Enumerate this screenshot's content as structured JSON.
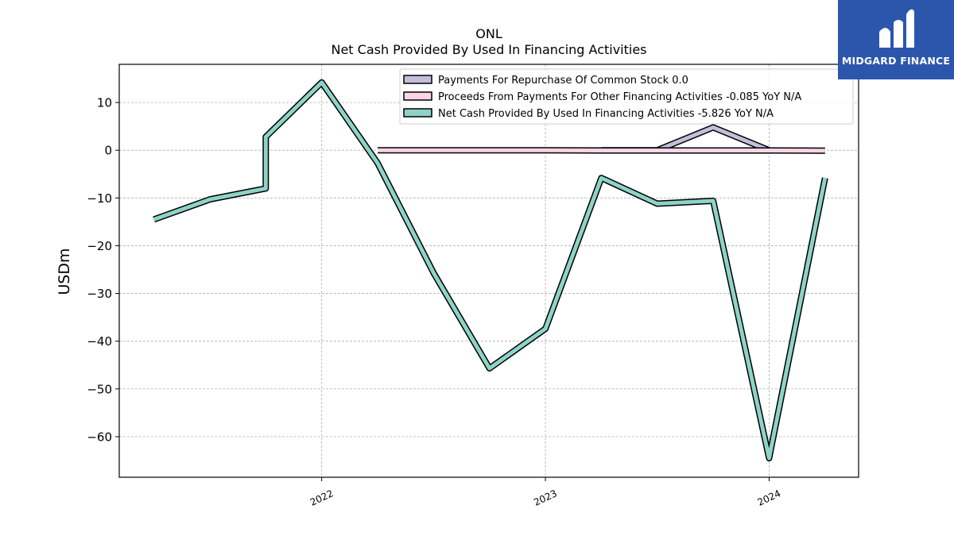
{
  "logo": {
    "text": "MIDGARD FINANCE",
    "background": "#2b56ac"
  },
  "chart_data": {
    "type": "line",
    "title": "ONL",
    "subtitle": "Net Cash Provided By Used In Financing Activities",
    "xlabel": "",
    "ylabel": "USDm",
    "ylim": [
      -68.5,
      18.0
    ],
    "yticks": [
      10,
      0,
      -10,
      -20,
      -30,
      -40,
      -50,
      -60
    ],
    "ytick_labels": [
      "10",
      "0",
      "−10",
      "−20",
      "−30",
      "−40",
      "−50",
      "−60"
    ],
    "xlim": [
      2021.095,
      2024.4
    ],
    "xticks": [
      2022,
      2023,
      2024
    ],
    "xtick_labels": [
      "2022",
      "2023",
      "2024"
    ],
    "grid": true,
    "legend_position": "top-right",
    "series": [
      {
        "name": "Payments For Repurchase Of Common Stock",
        "legend_label": "Payments For Repurchase Of Common Stock  0.0",
        "color": "#c4bddc",
        "x": [
          2023.25,
          2023.5,
          2023.75,
          2024.0
        ],
        "y": [
          0.0,
          0.0,
          4.8,
          0.0
        ]
      },
      {
        "name": "Proceeds From Payments For Other Financing Activities",
        "legend_label": "Proceeds From Payments For Other Financing Activities  -0.085 YoY N/A",
        "color": "#fad3e4",
        "x": [
          2022.25,
          2022.5,
          2022.75,
          2023.0,
          2023.25,
          2023.5,
          2023.75,
          2024.0,
          2024.25
        ],
        "y": [
          0.0,
          0.0,
          0.0,
          0.0,
          -0.05,
          -0.05,
          -0.05,
          -0.05,
          -0.085
        ]
      },
      {
        "name": "Net Cash Provided By Used In Financing Activities",
        "legend_label": "Net Cash Provided By Used In Financing Activities  -5.826 YoY N/A",
        "color": "#8dd3c7",
        "x": [
          2021.25,
          2021.5,
          2021.75,
          2021.75,
          2022.0,
          2022.25,
          2022.5,
          2022.75,
          2023.0,
          2023.25,
          2023.5,
          2023.75,
          2024.0,
          2024.25
        ],
        "y": [
          -14.5,
          -10.3,
          -8.0,
          2.8,
          14.2,
          -2.7,
          -25.7,
          -45.7,
          -37.4,
          -5.8,
          -11.2,
          -10.6,
          -64.5,
          -5.8
        ]
      }
    ]
  }
}
